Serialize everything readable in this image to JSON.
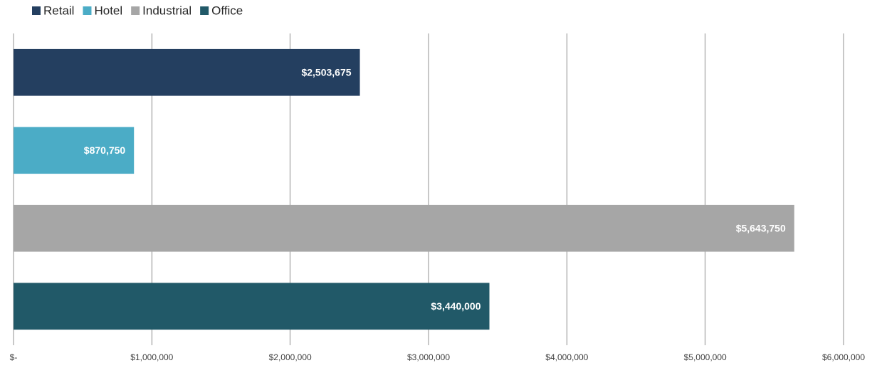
{
  "chart_data": {
    "type": "bar",
    "orientation": "horizontal",
    "series": [
      {
        "name": "Retail",
        "color": "#243f60",
        "values": [
          2503675
        ],
        "value_labels": [
          "$2,503,675"
        ]
      },
      {
        "name": "Hotel",
        "color": "#4bacc6",
        "values": [
          870750
        ],
        "value_labels": [
          "$870,750"
        ]
      },
      {
        "name": "Industrial",
        "color": "#a6a6a6",
        "values": [
          5643750
        ],
        "value_labels": [
          "$5,643,750"
        ]
      },
      {
        "name": "Office",
        "color": "#215968",
        "values": [
          3440000
        ],
        "value_labels": [
          "$3,440,000"
        ]
      }
    ],
    "xlim": [
      0,
      6000000
    ],
    "xticks": [
      {
        "value": 0,
        "label": "$-"
      },
      {
        "value": 1000000,
        "label": "$1,000,000"
      },
      {
        "value": 2000000,
        "label": "$2,000,000"
      },
      {
        "value": 3000000,
        "label": "$3,000,000"
      },
      {
        "value": 4000000,
        "label": "$4,000,000"
      },
      {
        "value": 5000000,
        "label": "$5,000,000"
      },
      {
        "value": 6000000,
        "label": "$6,000,000"
      }
    ],
    "grid": true,
    "legend": "top-left"
  }
}
